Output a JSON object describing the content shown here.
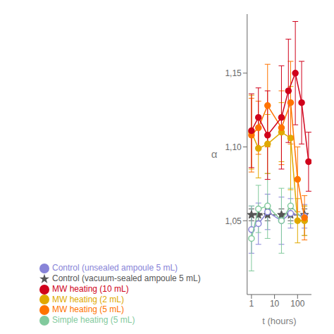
{
  "chart_data": {
    "type": "line",
    "xlabel": "t (hours)",
    "ylabel": "α",
    "log": "x",
    "xlim": [
      0.65,
      400
    ],
    "xticks": [
      1,
      10,
      100
    ],
    "ylim": [
      1.0,
      1.19
    ],
    "yticks": [
      {
        "value": 1.05,
        "label": "1,05"
      },
      {
        "value": 1.1,
        "label": "1,10"
      },
      {
        "value": 1.15,
        "label": "1,15"
      }
    ],
    "grid": false,
    "legend": "bottom",
    "series": [
      {
        "name": "Control (vacuum-sealed ampoule 5 mL)",
        "x": [
          1,
          2,
          5,
          20,
          50,
          200
        ],
        "values": [
          1.054,
          1.054,
          1.054,
          1.054,
          1.054,
          1.054
        ],
        "errors": [
          0.004,
          0.004,
          0.004,
          0.004,
          0.004,
          0.004
        ],
        "color": "#555555",
        "marker": "star",
        "line_style": "dashed"
      },
      {
        "name": "Control (unsealed ampoule 5 mL)",
        "x": [
          1,
          2,
          5,
          20,
          50,
          200
        ],
        "values": [
          1.044,
          1.048,
          1.056,
          1.05,
          1.055,
          1.053
        ],
        "errors": [
          0.016,
          0.014,
          0.012,
          0.016,
          0.01,
          0.008
        ],
        "color": "#8884d8",
        "marker": "circle-open",
        "line_style": "solid"
      },
      {
        "name": "Simple heating (5 mL)",
        "x": [
          1,
          2,
          5,
          20,
          50,
          200
        ],
        "values": [
          1.038,
          1.058,
          1.06,
          1.05,
          1.06,
          1.05
        ],
        "errors": [
          0.022,
          0.016,
          0.022,
          0.022,
          0.012,
          0.01
        ],
        "color": "#82ca9d",
        "marker": "circle-open",
        "line_style": "solid"
      },
      {
        "name": "MW heating (2 mL)",
        "x": [
          1,
          2,
          5,
          20,
          50,
          100,
          200
        ],
        "values": [
          1.11,
          1.099,
          1.102,
          1.11,
          1.106,
          1.05,
          1.05
        ],
        "errors": [
          0.025,
          0.02,
          0.02,
          0.02,
          0.035,
          0.015,
          0.01
        ],
        "color": "#e0a800",
        "marker": "circle",
        "line_style": "solid"
      },
      {
        "name": "MW heating (5 mL)",
        "x": [
          1,
          2,
          5,
          20,
          50,
          100,
          200
        ],
        "values": [
          1.108,
          1.113,
          1.128,
          1.113,
          1.13,
          1.078,
          1.052
        ],
        "errors": [
          0.025,
          0.018,
          0.028,
          0.025,
          0.028,
          0.022,
          0.015
        ],
        "color": "#ff7300",
        "marker": "circle",
        "line_style": "solid"
      },
      {
        "name": "MW heating (10 mL)",
        "x": [
          1,
          2,
          5,
          20,
          40,
          80,
          150,
          300
        ],
        "values": [
          1.111,
          1.12,
          1.108,
          1.12,
          1.138,
          1.15,
          1.13,
          1.09
        ],
        "errors": [
          0.025,
          0.02,
          0.03,
          0.035,
          0.035,
          0.035,
          0.028,
          0.02
        ],
        "color": "#d0021b",
        "marker": "circle",
        "line_style": "solid"
      }
    ]
  }
}
